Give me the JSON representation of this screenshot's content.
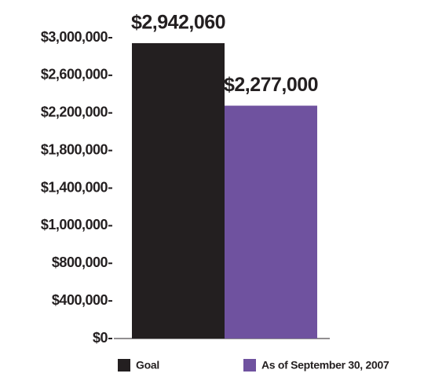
{
  "chart_data": {
    "type": "bar",
    "series": [
      {
        "name": "Goal",
        "color": "#231f20",
        "values": [
          2942060
        ],
        "value_labels": [
          "$2,942,060"
        ]
      },
      {
        "name": "As of September 30, 2007",
        "color": "#6f529f",
        "values": [
          2277000
        ],
        "value_labels": [
          "$2,277,000"
        ]
      }
    ],
    "ylim": [
      0,
      3000000
    ],
    "yticks": [
      {
        "value": 0,
        "label": "$0"
      },
      {
        "value": 400000,
        "label": "$400,000"
      },
      {
        "value": 800000,
        "label": "$800,000"
      },
      {
        "value": 1000000,
        "label": "$1,000,000"
      },
      {
        "value": 1400000,
        "label": "$1,400,000"
      },
      {
        "value": 1800000,
        "label": "$1,800,000"
      },
      {
        "value": 2200000,
        "label": "$2,200,000"
      },
      {
        "value": 2600000,
        "label": "$2,600,000"
      },
      {
        "value": 3000000,
        "label": "$3,000,000"
      }
    ]
  }
}
